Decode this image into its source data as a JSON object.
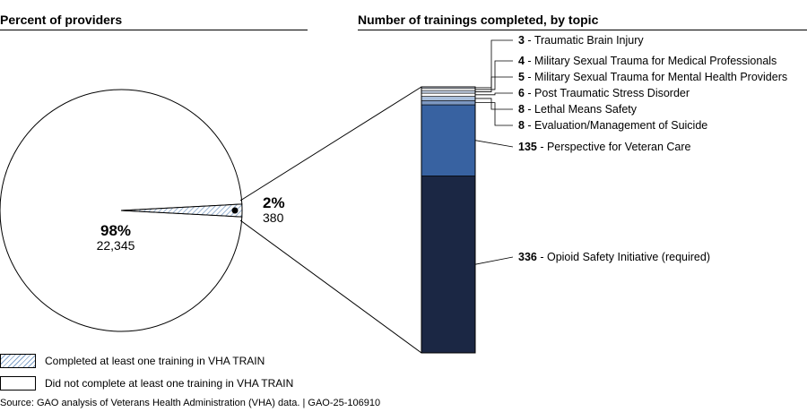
{
  "headers": {
    "left": "Percent of providers",
    "right": "Number of trainings completed, by topic"
  },
  "chart_data": [
    {
      "type": "pie",
      "title": "Percent of providers",
      "slices": [
        {
          "name": "Did not complete at least one training in VHA TRAIN",
          "percent_label": "98%",
          "count_label": "22,345",
          "value": 22345,
          "color": "#ffffff"
        },
        {
          "name": "Completed at least one training in VHA TRAIN",
          "percent_label": "2%",
          "count_label": "380",
          "value": 380,
          "color": "#7fa1c9"
        }
      ]
    },
    {
      "type": "bar",
      "stacked": true,
      "title": "Number of trainings completed, by topic",
      "series": [
        {
          "name": "Opioid Safety Initiative (required)",
          "value": 336,
          "color": "#1b2744"
        },
        {
          "name": "Perspective for Veteran Care",
          "value": 135,
          "color": "#3862a1"
        },
        {
          "name": "Evaluation/Management of Suicide",
          "value": 8,
          "color": "#7d98c2"
        },
        {
          "name": "Lethal Means Safety",
          "value": 8,
          "color": "#a9bfdc"
        },
        {
          "name": "Post Traumatic Stress Disorder",
          "value": 6,
          "color": "#ffffff"
        },
        {
          "name": "Military Sexual Trauma for Mental Health Providers",
          "value": 5,
          "color": "#c9d6ea"
        },
        {
          "name": "Military Sexual Trauma for Medical Professionals",
          "value": 4,
          "color": "#ffffff"
        },
        {
          "name": "Traumatic Brain Injury",
          "value": 3,
          "color": "#dbe4f2"
        }
      ]
    }
  ],
  "legend": [
    {
      "label": "Completed at least one training in VHA TRAIN",
      "style": "hatched"
    },
    {
      "label": "Did not complete at least one training in VHA TRAIN",
      "style": "plain"
    }
  ],
  "source": "Source: GAO analysis of Veterans Health Administration (VHA) data.  |  GAO-25-106910"
}
